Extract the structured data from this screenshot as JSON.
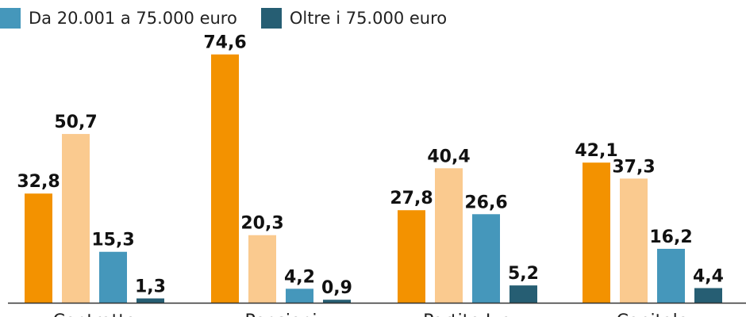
{
  "chart_data": {
    "type": "bar",
    "categories": [
      "Contratto",
      "Pensioni",
      "Partite Iva",
      "Capitale"
    ],
    "series": [
      {
        "name": "",
        "color": "#F39200",
        "values": [
          32.8,
          74.6,
          27.8,
          42.1
        ],
        "labels": [
          "32,8",
          "74,6",
          "27,8",
          "42,1"
        ]
      },
      {
        "name": "",
        "color": "#FACA8F",
        "values": [
          50.7,
          20.3,
          40.4,
          37.3
        ],
        "labels": [
          "50,7",
          "20,3",
          "40,4",
          "37,3"
        ]
      },
      {
        "name": "Da 20.001 a 75.000 euro",
        "color": "#4597BB",
        "values": [
          15.3,
          4.2,
          26.6,
          16.2
        ],
        "labels": [
          "15,3",
          "4,2",
          "26,6",
          "16,2"
        ]
      },
      {
        "name": "Oltre i 75.000 euro",
        "color": "#265E73",
        "values": [
          1.3,
          0.9,
          5.2,
          4.4
        ],
        "labels": [
          "1,3",
          "0,9",
          "5,2",
          "4,4"
        ]
      }
    ],
    "ylim": [
      0,
      80
    ],
    "grid": false,
    "legend_position": "top-left",
    "title": "",
    "xlabel": "",
    "ylabel": ""
  }
}
